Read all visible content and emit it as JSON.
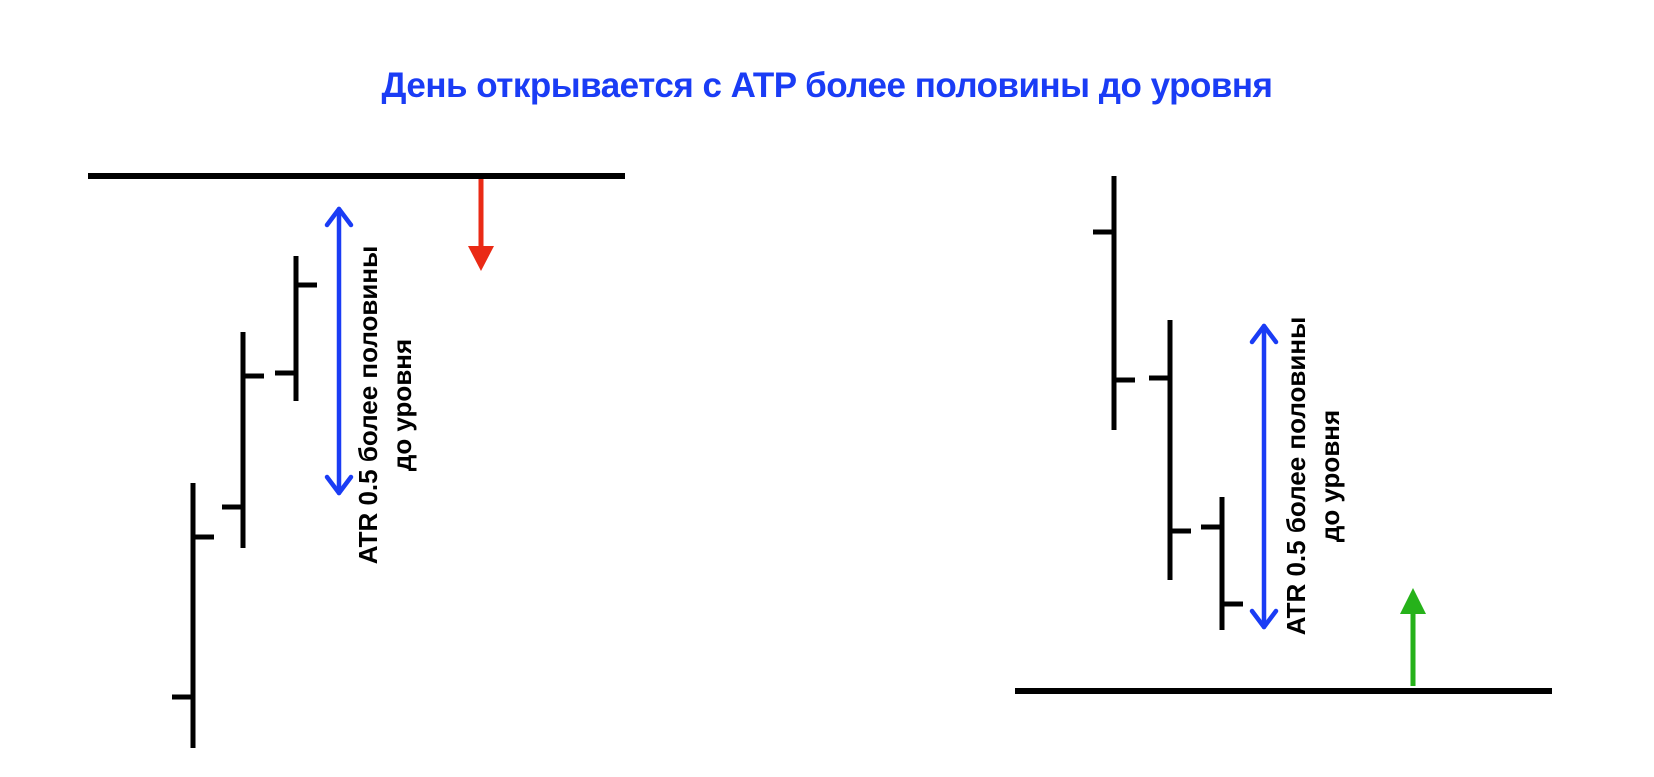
{
  "title": "День открывается с ATP более половины до уровня",
  "colors": {
    "title": "#1a3cf5",
    "bars": "#000000",
    "level": "#000000",
    "range_arrow": "#1a3cf5",
    "down_arrow": "#ea2a15",
    "up_arrow": "#26b21a",
    "label": "#000000"
  },
  "left_panel": {
    "label_line1": "ATR 0.5 более половины",
    "label_line2": "до уровня",
    "level_name": "resistance-level",
    "direction_arrow": "down-arrow"
  },
  "right_panel": {
    "label_line1": "ATR 0.5 более половины",
    "label_line2": "до уровня",
    "level_name": "support-level",
    "direction_arrow": "up-arrow"
  }
}
